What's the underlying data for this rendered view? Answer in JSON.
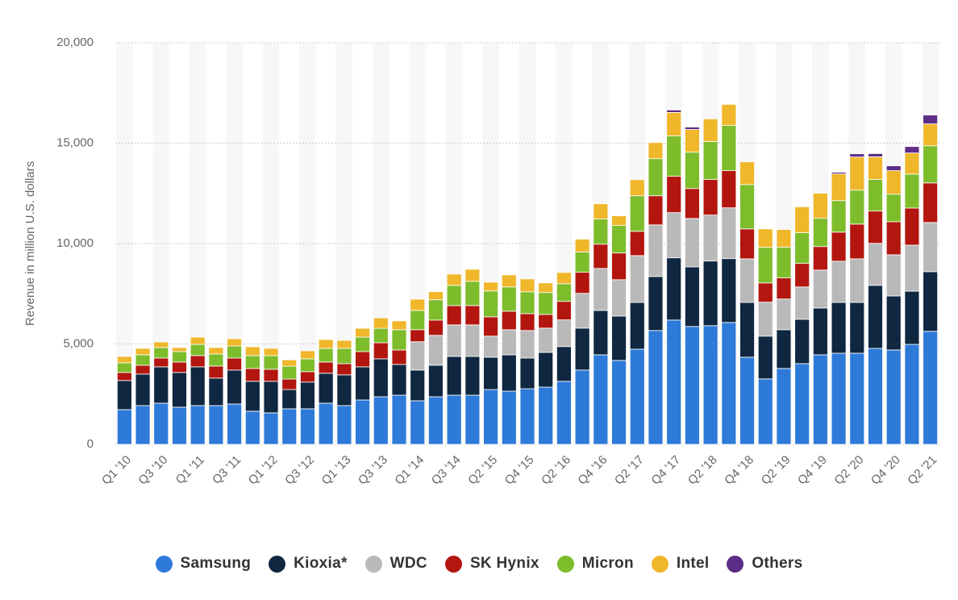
{
  "chart_data": {
    "type": "stacked_bar",
    "y_label": "Revenue in million U.S. dollars",
    "categories": [
      "Q1 '10",
      null,
      "Q3 '10",
      null,
      "Q1 '11",
      null,
      "Q3 '11",
      null,
      "Q1 '12",
      null,
      "Q3 '12",
      null,
      "Q1 '13",
      null,
      "Q3 '13",
      null,
      "Q1 '14",
      null,
      "Q3 '14",
      null,
      "Q2 '15",
      null,
      "Q4 '15",
      null,
      "Q2 '16",
      null,
      "Q4 '16",
      null,
      "Q2 '17",
      null,
      "Q4 '17",
      null,
      "Q2 '18",
      null,
      "Q4 '18",
      null,
      "Q2 '19",
      null,
      "Q4 '19",
      null,
      "Q2 '20",
      null,
      "Q4 '20",
      null,
      "Q2 '21"
    ],
    "ylim": [
      0,
      20000
    ],
    "yticks": [
      0,
      {
        "value": 5000,
        "label": "5,000"
      },
      {
        "value": 10000,
        "label": "10,000"
      },
      {
        "value": 15000,
        "label": "15,000"
      },
      {
        "value": 20000,
        "label": "20,000"
      }
    ],
    "grid": true,
    "legend": "bottom",
    "series": [
      {
        "name": "Samsung",
        "color": "#2e7ad9",
        "values": [
          1730,
          1930,
          2050,
          1850,
          1930,
          1930,
          2010,
          1650,
          1570,
          1770,
          1770,
          2050,
          1930,
          2210,
          2370,
          2450,
          2170,
          2370,
          2450,
          2450,
          2730,
          2650,
          2770,
          2850,
          3140,
          3700,
          4460,
          4180,
          4740,
          5670,
          6190,
          5870,
          5910,
          6070,
          4340,
          3260,
          3780,
          4020,
          4460,
          4540,
          4540,
          4780,
          4700,
          4980,
          5630
        ]
      },
      {
        "name": "Kioxia*",
        "color": "#0f2740",
        "values": [
          1450,
          1570,
          1810,
          1730,
          1930,
          1370,
          1690,
          1490,
          1570,
          960,
          1330,
          1490,
          1530,
          1650,
          1890,
          1530,
          1530,
          1570,
          1930,
          1930,
          1610,
          1810,
          1530,
          1730,
          1730,
          2090,
          2210,
          2210,
          2330,
          2690,
          3100,
          2970,
          3220,
          3180,
          2730,
          2130,
          1930,
          2210,
          2330,
          2530,
          2530,
          3140,
          2690,
          2650,
          2970
        ]
      },
      {
        "name": "WDC",
        "color": "#b9b9b9",
        "values": [
          0,
          0,
          0,
          0,
          0,
          0,
          0,
          0,
          0,
          0,
          0,
          0,
          0,
          0,
          0,
          0,
          1410,
          1490,
          1570,
          1570,
          1050,
          1250,
          1370,
          1210,
          1330,
          1730,
          2090,
          1810,
          2330,
          2570,
          2250,
          2410,
          2290,
          2530,
          2170,
          1690,
          1530,
          1610,
          1890,
          2050,
          2170,
          2090,
          2050,
          2290,
          2450
        ]
      },
      {
        "name": "SK Hynix",
        "color": "#b3160f",
        "values": [
          400,
          440,
          440,
          520,
          560,
          600,
          600,
          640,
          600,
          520,
          520,
          560,
          560,
          760,
          800,
          720,
          600,
          760,
          960,
          960,
          960,
          920,
          840,
          680,
          920,
          1050,
          1210,
          1330,
          1210,
          1450,
          1810,
          1490,
          1770,
          1850,
          1490,
          960,
          1050,
          1170,
          1170,
          1450,
          1730,
          1610,
          1650,
          1850,
          1970
        ]
      },
      {
        "name": "Micron",
        "color": "#7dbd2b",
        "values": [
          480,
          520,
          520,
          520,
          560,
          600,
          600,
          640,
          680,
          640,
          640,
          680,
          760,
          720,
          720,
          1010,
          960,
          1010,
          1010,
          1210,
          1290,
          1210,
          1090,
          1090,
          880,
          1010,
          1250,
          1370,
          1770,
          1850,
          2010,
          1810,
          1890,
          2250,
          2210,
          1770,
          1530,
          1530,
          1410,
          1570,
          1690,
          1570,
          1370,
          1690,
          1850
        ]
      },
      {
        "name": "Intel",
        "color": "#f0b72b",
        "values": [
          320,
          320,
          280,
          200,
          360,
          320,
          360,
          440,
          360,
          320,
          400,
          440,
          400,
          440,
          520,
          440,
          560,
          400,
          560,
          600,
          440,
          600,
          640,
          480,
          560,
          640,
          760,
          480,
          800,
          800,
          1170,
          1130,
          1130,
          1050,
          1130,
          920,
          880,
          1290,
          1250,
          1330,
          1650,
          1130,
          1170,
          1050,
          1090
        ]
      },
      {
        "name": "Others",
        "color": "#5c2d86",
        "values": [
          0,
          0,
          0,
          0,
          0,
          0,
          0,
          0,
          0,
          0,
          0,
          0,
          0,
          0,
          0,
          0,
          0,
          0,
          0,
          0,
          0,
          0,
          0,
          0,
          0,
          0,
          0,
          0,
          0,
          0,
          120,
          120,
          0,
          0,
          0,
          0,
          0,
          0,
          0,
          80,
          160,
          160,
          240,
          320,
          440
        ]
      }
    ]
  }
}
